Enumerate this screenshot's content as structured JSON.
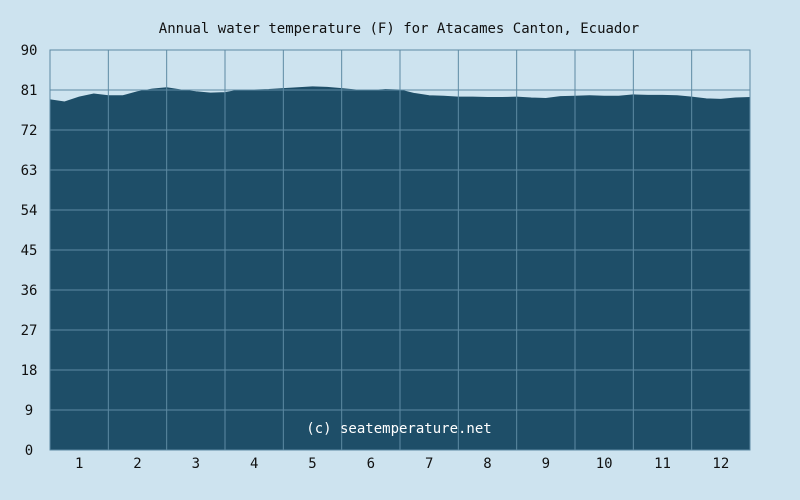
{
  "chart_data": {
    "type": "area",
    "title": "Annual water temperature (F) for Atacames Canton, Ecuador",
    "xlabel": "",
    "ylabel": "",
    "ylim": [
      0,
      90
    ],
    "yticks": [
      "0",
      "9",
      "18",
      "27",
      "36",
      "45",
      "54",
      "63",
      "72",
      "81",
      "90"
    ],
    "categories": [
      "1",
      "2",
      "3",
      "4",
      "5",
      "6",
      "7",
      "8",
      "9",
      "10",
      "11",
      "12"
    ],
    "x": [
      0.5,
      0.75,
      1.0,
      1.25,
      1.5,
      1.75,
      2.0,
      2.25,
      2.5,
      2.75,
      3.0,
      3.25,
      3.5,
      3.75,
      4.0,
      4.25,
      4.5,
      4.75,
      5.0,
      5.25,
      5.5,
      5.75,
      6.0,
      6.25,
      6.5,
      6.75,
      7.0,
      7.25,
      7.5,
      7.75,
      8.0,
      8.25,
      8.5,
      8.75,
      9.0,
      9.25,
      9.5,
      9.75,
      10.0,
      10.25,
      10.5,
      10.75,
      11.0,
      11.25,
      11.5,
      11.75,
      12.0,
      12.25,
      12.5
    ],
    "values": [
      78.8,
      78.3,
      79.4,
      80.1,
      79.7,
      79.7,
      80.6,
      81.2,
      81.5,
      81.0,
      80.6,
      80.3,
      80.4,
      81.0,
      81.0,
      81.1,
      81.3,
      81.5,
      81.7,
      81.6,
      81.3,
      81.0,
      80.9,
      81.1,
      81.0,
      80.2,
      79.7,
      79.6,
      79.4,
      79.4,
      79.3,
      79.3,
      79.4,
      79.2,
      79.1,
      79.5,
      79.6,
      79.7,
      79.6,
      79.6,
      79.9,
      79.8,
      79.8,
      79.7,
      79.4,
      79.0,
      78.9,
      79.2,
      79.3
    ],
    "colors": {
      "background": "#cde3ef",
      "fill": "#1e4e68",
      "line": "#1e4e68",
      "grid": "#5d8aa3"
    },
    "grid": true,
    "legend": "none",
    "watermark": "(c) seatemperature.net"
  }
}
